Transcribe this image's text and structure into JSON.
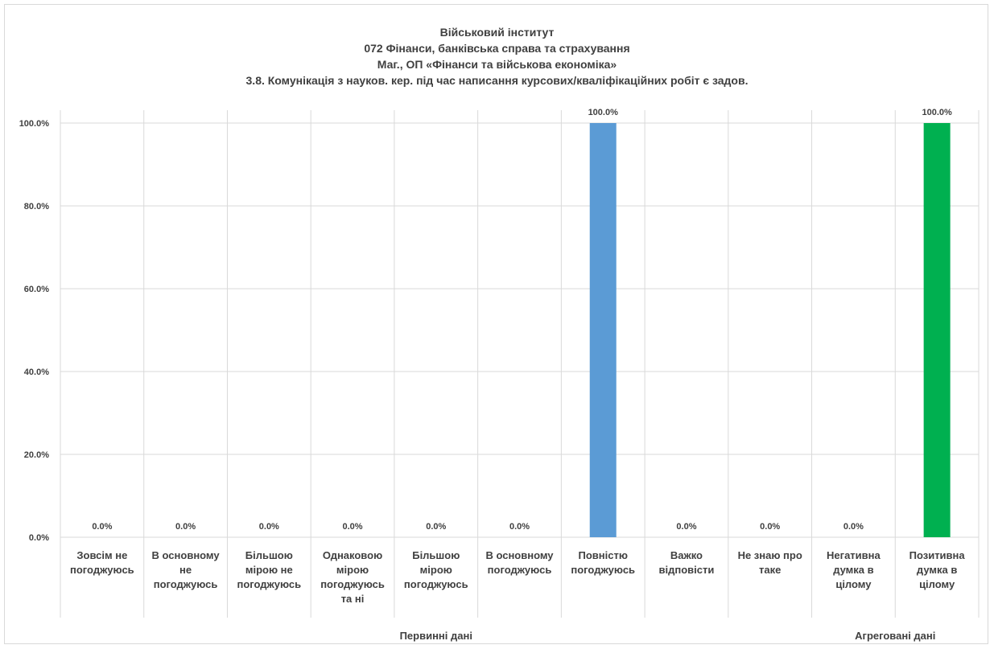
{
  "chart_data": {
    "type": "bar",
    "title_lines": [
      "Військовий інститут",
      "072 Фінанси, банківська справа та страхування",
      "Маг., ОП «Фінанси та військова економіка»",
      "3.8. Комунікація з науков. кер. під час написання курсових/кваліфікаційних робіт є задов."
    ],
    "categories": [
      [
        "Зовсім не",
        "погоджуюсь"
      ],
      [
        "В основному",
        "не",
        "погоджуюсь"
      ],
      [
        "Більшою",
        "мірою не",
        "погоджуюсь"
      ],
      [
        "Однаковою",
        "мірою",
        "погоджуюсь",
        "та ні"
      ],
      [
        "Більшою",
        "мірою",
        "погоджуюсь"
      ],
      [
        "В основному",
        "погоджуюсь"
      ],
      [
        "Повністю",
        "погоджуюсь"
      ],
      [
        "Важко",
        "відповісти"
      ],
      [
        "Не знаю про",
        "таке"
      ],
      [
        "Негативна",
        "думка в",
        "цілому"
      ],
      [
        "Позитивна",
        "думка в",
        "цілому"
      ]
    ],
    "values": [
      0,
      0,
      0,
      0,
      0,
      0,
      100,
      0,
      0,
      0,
      100
    ],
    "data_labels": [
      "0.0%",
      "0.0%",
      "0.0%",
      "0.0%",
      "0.0%",
      "0.0%",
      "100.0%",
      "0.0%",
      "0.0%",
      "0.0%",
      "100.0%"
    ],
    "bar_colors": [
      "#5b9bd5",
      "#5b9bd5",
      "#5b9bd5",
      "#5b9bd5",
      "#5b9bd5",
      "#5b9bd5",
      "#5b9bd5",
      "#5b9bd5",
      "#5b9bd5",
      "#5b9bd5",
      "#00b050"
    ],
    "groups": [
      {
        "label": "Первинні дані",
        "count": 9
      },
      {
        "label": "Агреговані дані",
        "count": 2
      }
    ],
    "ylim": [
      0,
      100
    ],
    "yticks": [
      0,
      20,
      40,
      60,
      80,
      100
    ],
    "ytick_labels": [
      "0.0%",
      "20.0%",
      "40.0%",
      "60.0%",
      "80.0%",
      "100.0%"
    ],
    "grid": true,
    "gridline_color": "#d9d9d9",
    "text_color": "#404040"
  }
}
